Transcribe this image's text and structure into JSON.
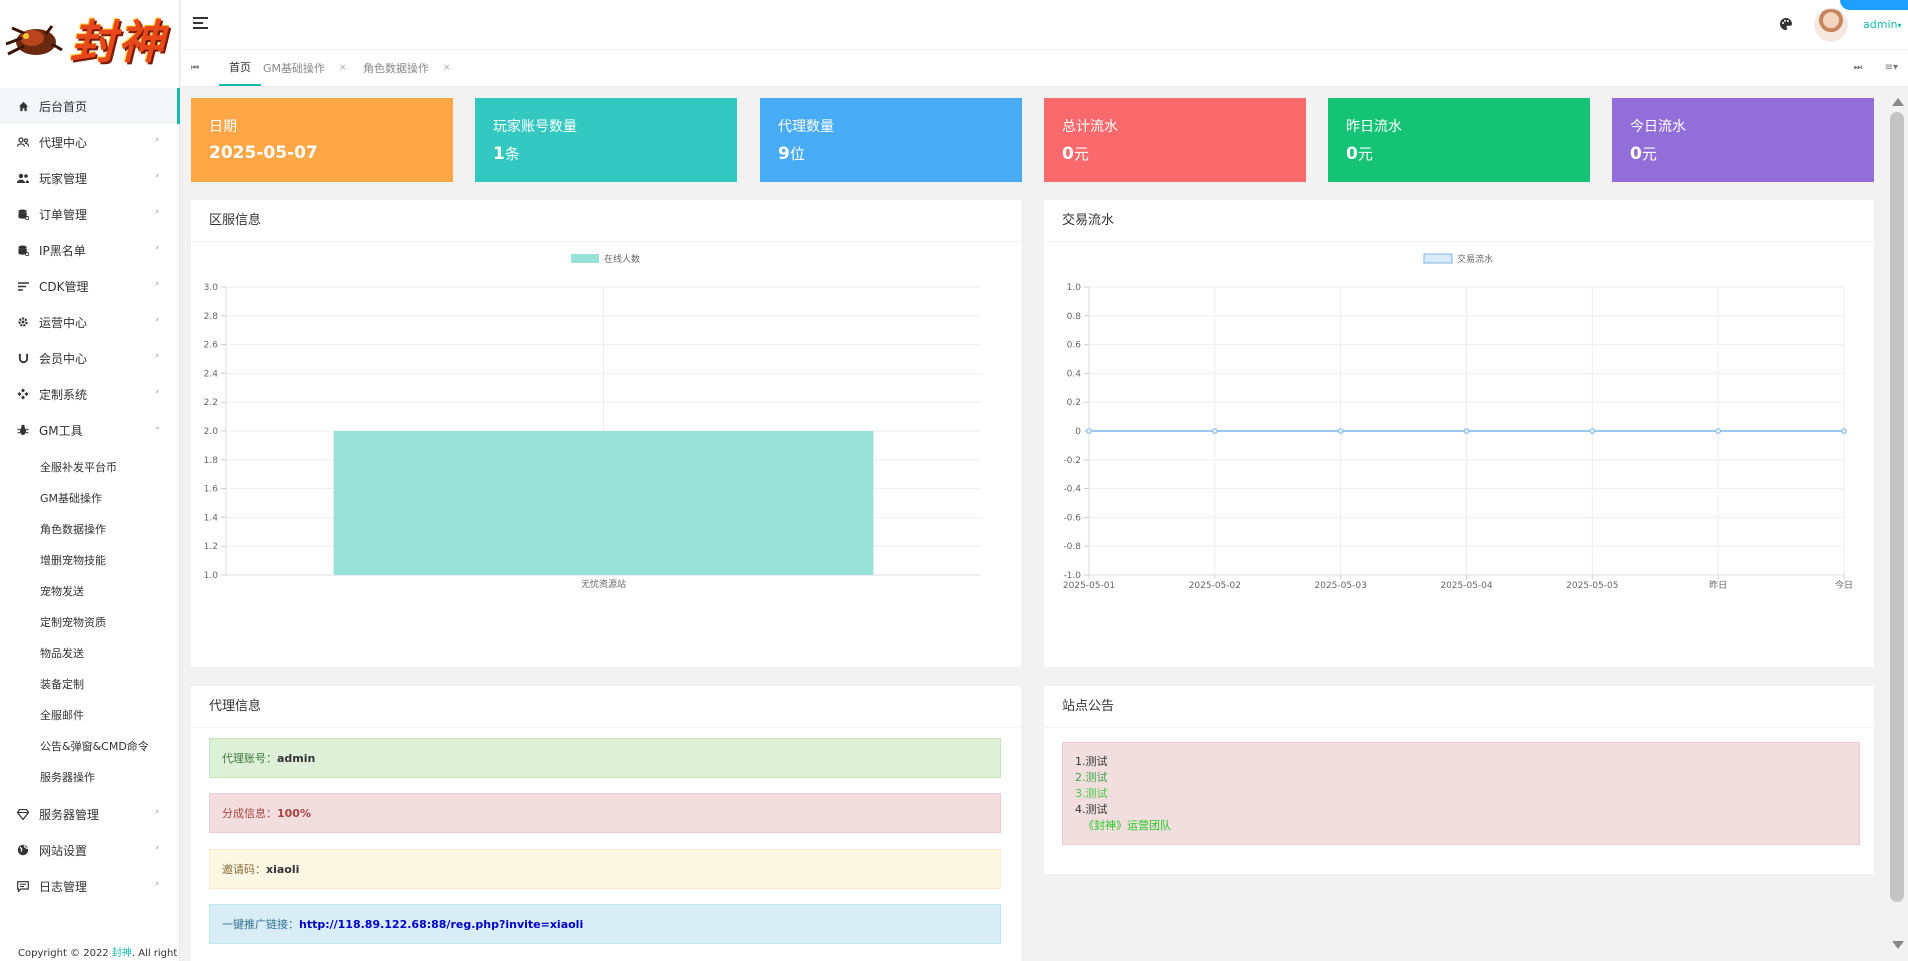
{
  "logo": {
    "text": "封神"
  },
  "sidebar": {
    "items": [
      {
        "label": "后台首页",
        "icon": "home-icon"
      },
      {
        "label": "代理中心",
        "icon": "agents-icon"
      },
      {
        "label": "玩家管理",
        "icon": "users-icon"
      },
      {
        "label": "订单管理",
        "icon": "database-icon"
      },
      {
        "label": "IP黑名单",
        "icon": "blacklist-icon"
      },
      {
        "label": "CDK管理",
        "icon": "list-icon"
      },
      {
        "label": "运营中心",
        "icon": "gear-icon"
      },
      {
        "label": "会员中心",
        "icon": "magnet-icon"
      },
      {
        "label": "定制系统",
        "icon": "component-icon"
      },
      {
        "label": "GM工具",
        "icon": "bug-icon"
      }
    ],
    "gm_sub": [
      "全服补发平台币",
      "GM基础操作",
      "角色数据操作",
      "增删宠物技能",
      "宠物发送",
      "定制宠物资质",
      "物品发送",
      "装备定制",
      "全服邮件",
      "公告&弹窗&CMD命令",
      "服务器操作"
    ],
    "bottom_items": [
      {
        "label": "服务器管理",
        "icon": "diamond-icon"
      },
      {
        "label": "网站设置",
        "icon": "globe-icon"
      },
      {
        "label": "日志管理",
        "icon": "message-icon"
      }
    ],
    "copyright_prefix": "Copyright © 2022",
    "copyright_brand": "封神",
    "copyright_suffix": ". All right"
  },
  "header": {
    "user": "admin"
  },
  "tabs": [
    {
      "label": "首页",
      "active": true
    },
    {
      "label": "GM基础操作",
      "close": "×"
    },
    {
      "label": "角色数据操作",
      "close": "×"
    }
  ],
  "stats": [
    {
      "label": "日期",
      "value": "2025-05-07",
      "unit": "",
      "color": "#ffa647"
    },
    {
      "label": "玩家账号数量",
      "value": "1",
      "unit": "条",
      "color": "#33c9c0"
    },
    {
      "label": "代理数量",
      "value": "9",
      "unit": "位",
      "color": "#48acf5"
    },
    {
      "label": "总计流水",
      "value": "0",
      "unit": "元",
      "color": "#fa696b"
    },
    {
      "label": "昨日流水",
      "value": "0",
      "unit": "元",
      "color": "#15c374"
    },
    {
      "label": "今日流水",
      "value": "0",
      "unit": "元",
      "color": "#926ed9"
    }
  ],
  "panels": {
    "server_info": "区服信息",
    "transactions": "交易流水",
    "agent_info": "代理信息",
    "notice": "站点公告"
  },
  "chart_data": [
    {
      "type": "bar",
      "legend": "在线人数",
      "categories": [
        "无忧资源站"
      ],
      "series": [
        {
          "name": "在线人数",
          "values": [
            2
          ]
        }
      ],
      "yticks": [
        "3.0",
        "2.8",
        "2.6",
        "2.4",
        "2.2",
        "2.0",
        "1.8",
        "1.6",
        "1.4",
        "1.2",
        "1.0"
      ],
      "ylim": [
        1,
        3
      ],
      "color": "#99e2da"
    },
    {
      "type": "line",
      "legend": "交易流水",
      "categories": [
        "2025-05-01",
        "2025-05-02",
        "2025-05-03",
        "2025-05-04",
        "2025-05-05",
        "昨日",
        "今日"
      ],
      "series": [
        {
          "name": "交易流水",
          "values": [
            0,
            0,
            0,
            0,
            0,
            0,
            0
          ]
        }
      ],
      "yticks": [
        "1.0",
        "0.8",
        "0.6",
        "0.4",
        "0.2",
        "0",
        "-0.2",
        "-0.4",
        "-0.6",
        "-0.8",
        "-1.0"
      ],
      "ylim": [
        -1,
        1
      ],
      "color": "#7ab6e6"
    }
  ],
  "agent": {
    "account_label": "代理账号：",
    "account": "admin",
    "share_label": "分成信息：",
    "share": "100%",
    "invite_label": "邀请码：",
    "invite": "xiaoli",
    "link_label": "一键推广链接：",
    "link": "http://118.89.122.68:88/reg.php?invite=xiaoli"
  },
  "notice": {
    "lines": [
      {
        "text": "1.测试",
        "color": "#333333"
      },
      {
        "text": "2.测试",
        "color": "#3aa845"
      },
      {
        "text": "3.测试",
        "color": "#3ecf3e"
      },
      {
        "text": "4.测试",
        "color": "#333333"
      },
      {
        "text": "《封神》运营团队",
        "color": "#22cc22"
      }
    ]
  }
}
